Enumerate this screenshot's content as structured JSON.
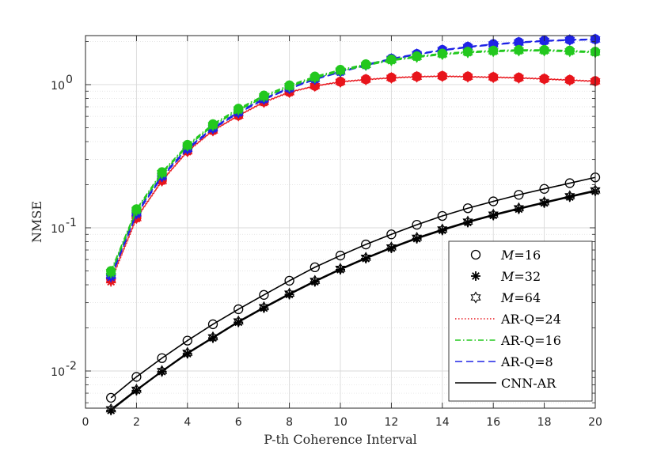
{
  "chart_data": {
    "type": "line",
    "xlabel": "P-th Coherence Interval",
    "ylabel": "NMSE",
    "y_scale": "log",
    "xlim": [
      0,
      20
    ],
    "ylim": [
      0.0055,
      2.2
    ],
    "grid": true,
    "x_ticks": [
      0,
      2,
      4,
      6,
      8,
      10,
      12,
      14,
      16,
      18,
      20
    ],
    "x_tick_labels": [
      "0",
      "2",
      "4",
      "6",
      "8",
      "10",
      "12",
      "14",
      "16",
      "18",
      "20"
    ],
    "y_ticks": [
      0.01,
      0.1,
      1
    ],
    "y_tick_labels": [
      {
        "base": "10",
        "exp": "-2"
      },
      {
        "base": "10",
        "exp": "-1"
      },
      {
        "base": "10",
        "exp": "0"
      }
    ],
    "x": [
      1,
      2,
      3,
      4,
      5,
      6,
      7,
      8,
      9,
      10,
      11,
      12,
      13,
      14,
      15,
      16,
      17,
      18,
      19,
      20
    ],
    "legend_position": "bottom-right",
    "legend": [
      {
        "kind": "marker",
        "marker": "circle",
        "prefix": "M",
        "text": "=16"
      },
      {
        "kind": "marker",
        "marker": "asterisk",
        "prefix": "M",
        "text": "=32"
      },
      {
        "kind": "marker",
        "marker": "hexagram",
        "prefix": "M",
        "text": "=64"
      },
      {
        "kind": "line",
        "color": "#e8141b",
        "dash": "1.5,2.5",
        "text": "AR-Q=24"
      },
      {
        "kind": "line",
        "color": "#23c81e",
        "dash": "7,3,1.5,3",
        "text": "AR-Q=16"
      },
      {
        "kind": "line",
        "color": "#1f23e6",
        "dash": "9,5",
        "text": "AR-Q=8"
      },
      {
        "kind": "line",
        "color": "#000000",
        "dash": "",
        "text": "CNN-AR"
      }
    ],
    "series": [
      {
        "name": "AR-Q=24, M=16",
        "color": "#e8141b",
        "dash": "1.5,2.5",
        "marker": "circle",
        "filled": true,
        "values": [
          0.044,
          0.118,
          0.215,
          0.345,
          0.48,
          0.61,
          0.76,
          0.89,
          0.98,
          1.05,
          1.09,
          1.12,
          1.14,
          1.15,
          1.14,
          1.13,
          1.12,
          1.1,
          1.08,
          1.06
        ]
      },
      {
        "name": "AR-Q=24, M=32",
        "color": "#e8141b",
        "dash": "1.5,2.5",
        "marker": "asterisk",
        "filled": true,
        "values": [
          0.042,
          0.116,
          0.212,
          0.34,
          0.475,
          0.605,
          0.75,
          0.88,
          0.975,
          1.04,
          1.08,
          1.11,
          1.13,
          1.14,
          1.13,
          1.12,
          1.11,
          1.09,
          1.07,
          1.05
        ]
      },
      {
        "name": "AR-Q=24, M=64",
        "color": "#e8141b",
        "dash": "1.5,2.5",
        "marker": "hexagram",
        "filled": true,
        "values": [
          0.043,
          0.117,
          0.213,
          0.342,
          0.478,
          0.607,
          0.755,
          0.885,
          0.978,
          1.045,
          1.085,
          1.115,
          1.135,
          1.145,
          1.135,
          1.125,
          1.115,
          1.095,
          1.075,
          1.055
        ]
      },
      {
        "name": "AR-Q=16, M=16",
        "color": "#23c81e",
        "dash": "7,3,1.5,3",
        "marker": "circle",
        "filled": true,
        "values": [
          0.05,
          0.135,
          0.245,
          0.38,
          0.53,
          0.68,
          0.84,
          0.99,
          1.14,
          1.27,
          1.39,
          1.5,
          1.58,
          1.65,
          1.7,
          1.73,
          1.75,
          1.75,
          1.73,
          1.7
        ]
      },
      {
        "name": "AR-Q=16, M=32",
        "color": "#23c81e",
        "dash": "7,3,1.5,3",
        "marker": "asterisk",
        "filled": true,
        "values": [
          0.048,
          0.131,
          0.238,
          0.37,
          0.515,
          0.66,
          0.815,
          0.965,
          1.11,
          1.24,
          1.36,
          1.47,
          1.55,
          1.62,
          1.67,
          1.7,
          1.72,
          1.72,
          1.7,
          1.67
        ]
      },
      {
        "name": "AR-Q=16, M=64",
        "color": "#23c81e",
        "dash": "7,3,1.5,3",
        "marker": "hexagram",
        "filled": true,
        "values": [
          0.049,
          0.133,
          0.241,
          0.375,
          0.52,
          0.67,
          0.825,
          0.975,
          1.12,
          1.25,
          1.37,
          1.48,
          1.56,
          1.63,
          1.68,
          1.71,
          1.73,
          1.73,
          1.71,
          1.68
        ]
      },
      {
        "name": "AR-Q=8, M=16",
        "color": "#1f23e6",
        "dash": "9,5",
        "marker": "circle",
        "filled": true,
        "values": [
          0.047,
          0.128,
          0.232,
          0.36,
          0.5,
          0.645,
          0.8,
          0.95,
          1.1,
          1.24,
          1.38,
          1.52,
          1.64,
          1.75,
          1.84,
          1.92,
          1.98,
          2.03,
          2.06,
          2.08
        ]
      },
      {
        "name": "AR-Q=8, M=32",
        "color": "#1f23e6",
        "dash": "9,5",
        "marker": "asterisk",
        "filled": true,
        "values": [
          0.045,
          0.124,
          0.226,
          0.352,
          0.49,
          0.632,
          0.785,
          0.935,
          1.085,
          1.22,
          1.36,
          1.5,
          1.62,
          1.73,
          1.82,
          1.9,
          1.96,
          2.01,
          2.04,
          2.06
        ]
      },
      {
        "name": "AR-Q=8, M=64",
        "color": "#1f23e6",
        "dash": "9,5",
        "marker": "hexagram",
        "filled": true,
        "values": [
          0.046,
          0.126,
          0.229,
          0.356,
          0.495,
          0.638,
          0.792,
          0.942,
          1.092,
          1.23,
          1.37,
          1.51,
          1.63,
          1.74,
          1.83,
          1.91,
          1.97,
          2.02,
          2.05,
          2.07
        ]
      },
      {
        "name": "CNN-AR, M=16",
        "color": "#000000",
        "dash": "",
        "marker": "circle",
        "filled": false,
        "values": [
          0.0065,
          0.0091,
          0.0123,
          0.0163,
          0.0212,
          0.027,
          0.034,
          0.0427,
          0.053,
          0.064,
          0.0765,
          0.09,
          0.105,
          0.121,
          0.137,
          0.153,
          0.17,
          0.187,
          0.205,
          0.225
        ]
      },
      {
        "name": "CNN-AR, M=32",
        "color": "#000000",
        "dash": "",
        "marker": "asterisk",
        "filled": false,
        "values": [
          0.0053,
          0.0073,
          0.0099,
          0.0132,
          0.017,
          0.0219,
          0.0275,
          0.0342,
          0.042,
          0.051,
          0.061,
          0.072,
          0.084,
          0.096,
          0.109,
          0.122,
          0.135,
          0.149,
          0.164,
          0.18
        ]
      },
      {
        "name": "CNN-AR, M=64",
        "color": "#000000",
        "dash": "",
        "marker": "hexagram",
        "filled": false,
        "values": [
          0.0054,
          0.0074,
          0.01,
          0.0134,
          0.0172,
          0.0222,
          0.0279,
          0.0347,
          0.0426,
          0.0517,
          0.0618,
          0.073,
          0.0852,
          0.0974,
          0.1105,
          0.1236,
          0.137,
          0.151,
          0.1663,
          0.1825
        ]
      }
    ]
  }
}
